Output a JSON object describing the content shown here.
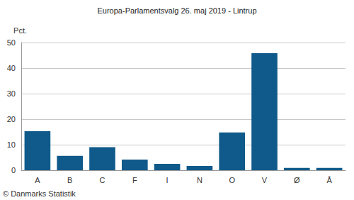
{
  "chart_data": {
    "type": "bar",
    "title": "Europa-Parlamentsvalg 26. maj 2019 - Lintrup",
    "ylabel": "Pct.",
    "categories": [
      "A",
      "B",
      "C",
      "F",
      "I",
      "N",
      "O",
      "V",
      "Ø",
      "Å"
    ],
    "values": [
      15.3,
      5.6,
      9.0,
      4.2,
      2.5,
      1.7,
      14.8,
      45.8,
      0.9,
      0.9
    ],
    "color": "#0f5a8a",
    "ylim": [
      0,
      50
    ],
    "yticks": [
      0,
      10,
      20,
      30,
      40,
      50
    ],
    "grid": true,
    "annotations": [
      "© Danmarks Statistik"
    ]
  }
}
